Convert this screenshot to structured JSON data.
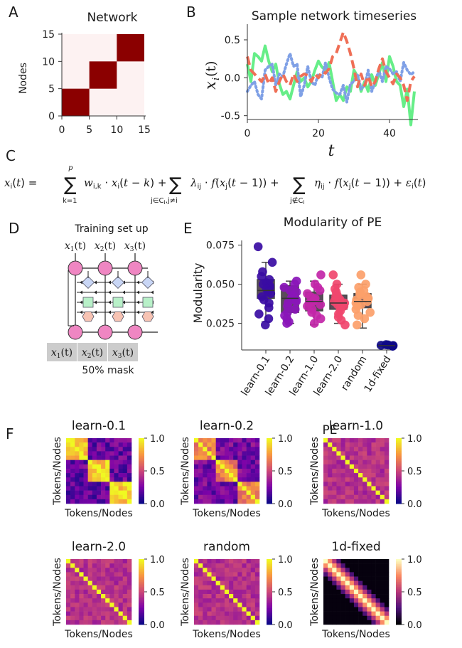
{
  "panels": {
    "A": "A",
    "B": "B",
    "C": "C",
    "D": "D",
    "E": "E",
    "F": "F"
  },
  "colors": {
    "block": "#8b0000",
    "block_bg": "#fdf2f2",
    "green": "#66ee88",
    "blue": "#7fa0e6",
    "red": "#ef6f56",
    "box": "#444444",
    "node": "#ef86c2",
    "mask": "#cccccc"
  },
  "chart_data": [
    {
      "id": "network",
      "type": "heatmap",
      "title": "Network",
      "ylabel": "Nodes",
      "xlim": [
        0,
        15
      ],
      "ylim": [
        0,
        15
      ],
      "x_ticks": [
        "0",
        "5",
        "10",
        "15"
      ],
      "y_ticks": [
        "0",
        "5",
        "10",
        "15"
      ],
      "blocks": [
        [
          0,
          5
        ],
        [
          5,
          10
        ],
        [
          10,
          15
        ]
      ]
    },
    {
      "id": "timeseries",
      "type": "line",
      "title": "Sample network timeseries",
      "xlabel": "t",
      "ylabel": "x",
      "ylabel_sub": "i",
      "ylabel_paren": "(t)",
      "xlim": [
        0,
        48
      ],
      "ylim": [
        -0.55,
        0.65
      ],
      "x_ticks": [
        "0",
        "20",
        "40"
      ],
      "y_ticks": [
        "0.5",
        "0.0",
        "-0.5"
      ],
      "series": [
        {
          "name": "green",
          "style": "solid",
          "values": [
            0.18,
            -0.05,
            0.32,
            0.28,
            0.22,
            0.42,
            0.22,
            0.08,
            0.18,
            -0.08,
            -0.22,
            -0.18,
            -0.28,
            -0.1,
            0.08,
            -0.05,
            0.0,
            -0.12,
            -0.05,
            0.1,
            0.22,
            0.14,
            0.1,
            0.2,
            -0.05,
            -0.3,
            -0.22,
            -0.3,
            -0.12,
            -0.18,
            0.1,
            0.02,
            -0.18,
            -0.05,
            -0.18,
            0.04,
            -0.1,
            0.05,
            0.2,
            -0.05,
            0.28,
            0.15,
            -0.05,
            -0.1,
            -0.38,
            -0.15,
            -0.62,
            -0.18
          ]
        },
        {
          "name": "blue",
          "style": "dotted",
          "values": [
            -0.18,
            -0.1,
            -0.05,
            -0.22,
            -0.28,
            0.1,
            0.15,
            0.18,
            -0.1,
            0.05,
            0.02,
            0.18,
            0.32,
            0.15,
            0.18,
            -0.25,
            -0.1,
            0.15,
            -0.05,
            -0.1,
            0.05,
            0.0,
            0.2,
            0.0,
            -0.15,
            -0.2,
            -0.22,
            -0.1,
            -0.32,
            -0.08,
            -0.05,
            0.05,
            -0.15,
            -0.1,
            0.1,
            -0.18,
            -0.05,
            0.1,
            -0.05,
            0.15,
            0.12,
            0.05,
            0.08,
            -0.05,
            0.2,
            0.1,
            0.04,
            0.08
          ]
        },
        {
          "name": "red",
          "style": "dashed",
          "values": [
            0.28,
            0.1,
            0.05,
            0.0,
            -0.05,
            0.05,
            -0.08,
            0.0,
            -0.18,
            -0.05,
            0.05,
            -0.05,
            -0.1,
            0.05,
            -0.05,
            0.02,
            0.05,
            0.03,
            -0.05,
            0.05,
            0.0,
            0.08,
            0.06,
            0.12,
            0.28,
            0.32,
            0.46,
            0.6,
            0.48,
            0.32,
            0.12,
            -0.12,
            0.05,
            -0.1,
            0.02,
            -0.12,
            -0.05,
            0.12,
            0.25,
            0.08,
            0.0,
            -0.08,
            0.05,
            0.0,
            -0.1,
            -0.3,
            -0.05,
            0.02
          ]
        }
      ]
    },
    {
      "id": "modularity",
      "type": "box",
      "title": "Modularity of PE",
      "ylabel": "Modularity",
      "ylim": [
        0.008,
        0.078
      ],
      "y_ticks": [
        "0.075",
        "0.050",
        "0.025"
      ],
      "categories": [
        "learn-0.1",
        "learn-0.2",
        "learn-1.0",
        "learn-2.0",
        "random",
        "1d-fixed"
      ],
      "series": [
        {
          "name": "learn-0.1",
          "color": "#3a0ca3",
          "q1": 0.041,
          "median": 0.046,
          "q3": 0.053,
          "min": 0.026,
          "max": 0.064,
          "points": [
            0.074,
            0.064,
            0.058,
            0.055,
            0.053,
            0.051,
            0.05,
            0.049,
            0.048,
            0.047,
            0.046,
            0.045,
            0.044,
            0.042,
            0.04,
            0.038,
            0.035,
            0.031,
            0.028,
            0.024
          ]
        },
        {
          "name": "learn-0.2",
          "color": "#8a16b8",
          "q1": 0.032,
          "median": 0.041,
          "q3": 0.049,
          "min": 0.025,
          "max": 0.052,
          "points": [
            0.052,
            0.05,
            0.048,
            0.046,
            0.045,
            0.043,
            0.042,
            0.041,
            0.04,
            0.039,
            0.038,
            0.036,
            0.034,
            0.032,
            0.03,
            0.028,
            0.026,
            0.025
          ]
        },
        {
          "name": "learn-1.0",
          "color": "#c226a8",
          "q1": 0.033,
          "median": 0.039,
          "q3": 0.045,
          "min": 0.024,
          "max": 0.052,
          "points": [
            0.056,
            0.05,
            0.048,
            0.046,
            0.044,
            0.042,
            0.041,
            0.04,
            0.039,
            0.038,
            0.037,
            0.036,
            0.034,
            0.032,
            0.03,
            0.028,
            0.025
          ]
        },
        {
          "name": "learn-2.0",
          "color": "#f0466e",
          "q1": 0.034,
          "median": 0.038,
          "q3": 0.043,
          "min": 0.025,
          "max": 0.05,
          "points": [
            0.056,
            0.05,
            0.047,
            0.045,
            0.043,
            0.042,
            0.041,
            0.04,
            0.039,
            0.038,
            0.037,
            0.036,
            0.035,
            0.033,
            0.031,
            0.029,
            0.027,
            0.024
          ]
        },
        {
          "name": "random",
          "color": "#fca06a",
          "q1": 0.035,
          "median": 0.039,
          "q3": 0.044,
          "min": 0.022,
          "max": 0.05,
          "points": [
            0.056,
            0.05,
            0.048,
            0.046,
            0.045,
            0.044,
            0.043,
            0.042,
            0.041,
            0.04,
            0.039,
            0.038,
            0.037,
            0.036,
            0.034,
            0.032,
            0.03,
            0.028,
            0.024
          ]
        },
        {
          "name": "1d-fixed",
          "color": "#0d0887",
          "q1": 0.0104,
          "median": 0.0108,
          "q3": 0.0112,
          "min": 0.0102,
          "max": 0.0114,
          "points": [
            0.0114,
            0.0112,
            0.011,
            0.0108,
            0.0106,
            0.0104
          ]
        }
      ]
    }
  ],
  "equation": {
    "lhs": "x",
    "text": "x_i(t) = Σ_{k=1}^{p} w_{i,k}·x_i(t−k) + Σ_{j∈C_i, j≠i} λ_ij·f(x_j(t−1)) + Σ_{j∉C_i} η_ij·f(x_j(t−1)) + ε_i(t)"
  },
  "diagram": {
    "title": "Training set up",
    "inputs": [
      "x1(t)",
      "x2(t)",
      "x3(t)"
    ],
    "outputs": [
      "x1(t)",
      "x2(t)",
      "x3(t)"
    ],
    "input_sym": "x",
    "subs": [
      "1",
      "2",
      "3"
    ],
    "arg": "(t)",
    "mask_label": "50% mask"
  },
  "pe": {
    "title": "PE",
    "axis_label": "Tokens/Nodes",
    "colorbar_ticks": [
      "1.0",
      "0.5",
      "0.0"
    ],
    "matrices": [
      {
        "title": "learn-0.1",
        "kind": "blocks",
        "strength": 0.55
      },
      {
        "title": "learn-0.2",
        "kind": "blocks",
        "strength": 0.28
      },
      {
        "title": "learn-1.0",
        "kind": "flat",
        "strength": 0.1
      },
      {
        "title": "learn-2.0",
        "kind": "flat",
        "strength": 0.05
      },
      {
        "title": "random",
        "kind": "flat",
        "strength": 0.05
      },
      {
        "title": "1d-fixed",
        "kind": "band",
        "strength": 1.0
      }
    ]
  }
}
